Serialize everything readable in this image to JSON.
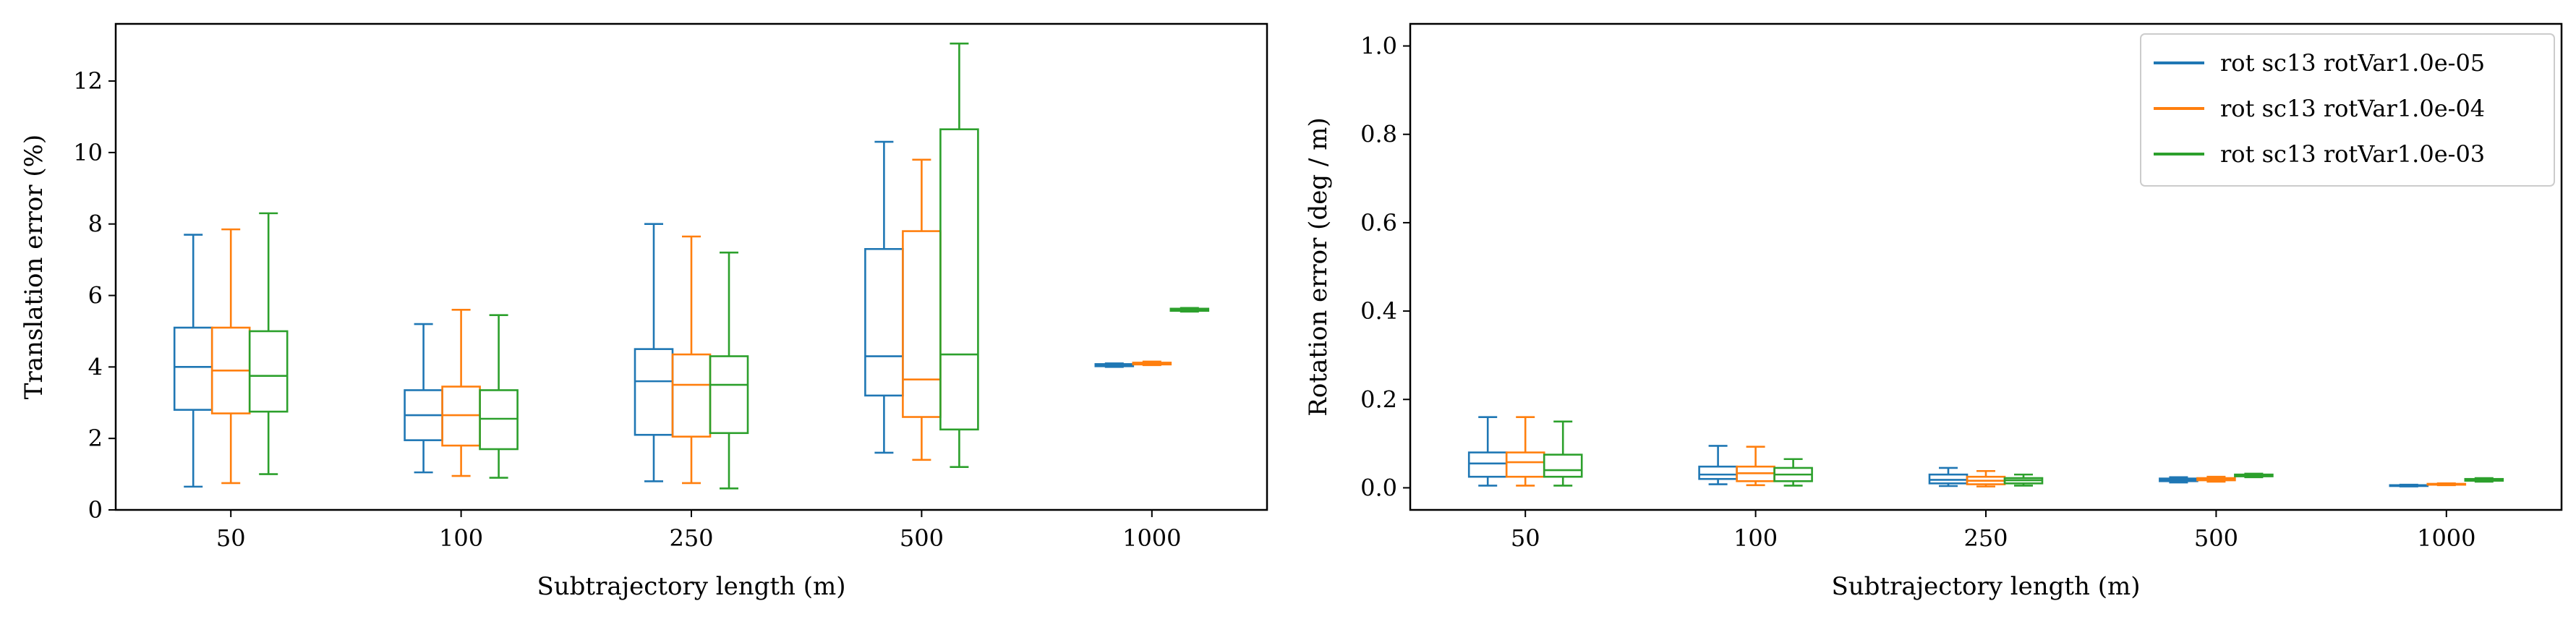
{
  "chart_data": [
    {
      "type": "box",
      "xlabel": "Subtrajectory length (m)",
      "ylabel": "Translation error (%)",
      "ylim": [
        0,
        13.6
      ],
      "yticks": [
        0,
        2,
        4,
        6,
        8,
        10,
        12
      ],
      "categories": [
        "50",
        "100",
        "250",
        "500",
        "1000"
      ],
      "grid": false,
      "series": [
        {
          "color": "#1f77b4",
          "boxes": [
            {
              "whisker_low": 0.65,
              "q1": 2.8,
              "median": 4.0,
              "q3": 5.1,
              "whisker_high": 7.7
            },
            {
              "whisker_low": 1.05,
              "q1": 1.95,
              "median": 2.65,
              "q3": 3.35,
              "whisker_high": 5.2
            },
            {
              "whisker_low": 0.8,
              "q1": 2.1,
              "median": 3.6,
              "q3": 4.5,
              "whisker_high": 8.0
            },
            {
              "whisker_low": 1.6,
              "q1": 3.2,
              "median": 4.3,
              "q3": 7.3,
              "whisker_high": 10.3
            },
            {
              "whisker_low": 4.0,
              "q1": 4.02,
              "median": 4.05,
              "q3": 4.08,
              "whisker_high": 4.1
            }
          ]
        },
        {
          "color": "#ff7f0e",
          "boxes": [
            {
              "whisker_low": 0.75,
              "q1": 2.7,
              "median": 3.9,
              "q3": 5.1,
              "whisker_high": 7.85
            },
            {
              "whisker_low": 0.95,
              "q1": 1.8,
              "median": 2.65,
              "q3": 3.45,
              "whisker_high": 5.6
            },
            {
              "whisker_low": 0.75,
              "q1": 2.05,
              "median": 3.5,
              "q3": 4.35,
              "whisker_high": 7.65
            },
            {
              "whisker_low": 1.4,
              "q1": 2.6,
              "median": 3.65,
              "q3": 7.8,
              "whisker_high": 9.8
            },
            {
              "whisker_low": 4.05,
              "q1": 4.07,
              "median": 4.1,
              "q3": 4.12,
              "whisker_high": 4.15
            }
          ]
        },
        {
          "color": "#2ca02c",
          "boxes": [
            {
              "whisker_low": 1.0,
              "q1": 2.75,
              "median": 3.75,
              "q3": 5.0,
              "whisker_high": 8.3
            },
            {
              "whisker_low": 0.9,
              "q1": 1.7,
              "median": 2.55,
              "q3": 3.35,
              "whisker_high": 5.45
            },
            {
              "whisker_low": 0.6,
              "q1": 2.15,
              "median": 3.5,
              "q3": 4.3,
              "whisker_high": 7.2
            },
            {
              "whisker_low": 1.2,
              "q1": 2.25,
              "median": 4.35,
              "q3": 10.65,
              "whisker_high": 13.05
            },
            {
              "whisker_low": 5.55,
              "q1": 5.57,
              "median": 5.6,
              "q3": 5.63,
              "whisker_high": 5.65
            }
          ]
        }
      ]
    },
    {
      "type": "box",
      "xlabel": "Subtrajectory length (m)",
      "ylabel": "Rotation error (deg / m)",
      "ylim": [
        -0.05,
        1.05
      ],
      "yticks": [
        0.0,
        0.2,
        0.4,
        0.6,
        0.8,
        1.0
      ],
      "ytick_labels": [
        "0.0",
        "0.2",
        "0.4",
        "0.6",
        "0.8",
        "1.0"
      ],
      "categories": [
        "50",
        "100",
        "250",
        "500",
        "1000"
      ],
      "grid": false,
      "legend": {
        "position": "top-right",
        "entries": [
          "rot sc13 rotVar1.0e-05",
          "rot sc13 rotVar1.0e-04",
          "rot sc13 rotVar1.0e-03"
        ]
      },
      "series": [
        {
          "name": "rot sc13 rotVar1.0e-05",
          "color": "#1f77b4",
          "boxes": [
            {
              "whisker_low": 0.005,
              "q1": 0.025,
              "median": 0.055,
              "q3": 0.08,
              "whisker_high": 0.16
            },
            {
              "whisker_low": 0.008,
              "q1": 0.02,
              "median": 0.03,
              "q3": 0.048,
              "whisker_high": 0.095
            },
            {
              "whisker_low": 0.004,
              "q1": 0.01,
              "median": 0.018,
              "q3": 0.03,
              "whisker_high": 0.045
            },
            {
              "whisker_low": 0.012,
              "q1": 0.015,
              "median": 0.018,
              "q3": 0.021,
              "whisker_high": 0.024
            },
            {
              "whisker_low": 0.003,
              "q1": 0.004,
              "median": 0.005,
              "q3": 0.006,
              "whisker_high": 0.007
            }
          ]
        },
        {
          "name": "rot sc13 rotVar1.0e-04",
          "color": "#ff7f0e",
          "boxes": [
            {
              "whisker_low": 0.005,
              "q1": 0.025,
              "median": 0.058,
              "q3": 0.08,
              "whisker_high": 0.16
            },
            {
              "whisker_low": 0.006,
              "q1": 0.015,
              "median": 0.033,
              "q3": 0.048,
              "whisker_high": 0.093
            },
            {
              "whisker_low": 0.003,
              "q1": 0.008,
              "median": 0.016,
              "q3": 0.025,
              "whisker_high": 0.038
            },
            {
              "whisker_low": 0.014,
              "q1": 0.017,
              "median": 0.02,
              "q3": 0.022,
              "whisker_high": 0.025
            },
            {
              "whisker_low": 0.006,
              "q1": 0.007,
              "median": 0.008,
              "q3": 0.009,
              "whisker_high": 0.01
            }
          ]
        },
        {
          "name": "rot sc13 rotVar1.0e-03",
          "color": "#2ca02c",
          "boxes": [
            {
              "whisker_low": 0.005,
              "q1": 0.025,
              "median": 0.04,
              "q3": 0.075,
              "whisker_high": 0.15
            },
            {
              "whisker_low": 0.005,
              "q1": 0.015,
              "median": 0.03,
              "q3": 0.045,
              "whisker_high": 0.065
            },
            {
              "whisker_low": 0.005,
              "q1": 0.01,
              "median": 0.017,
              "q3": 0.022,
              "whisker_high": 0.03
            },
            {
              "whisker_low": 0.024,
              "q1": 0.026,
              "median": 0.028,
              "q3": 0.03,
              "whisker_high": 0.032
            },
            {
              "whisker_low": 0.014,
              "q1": 0.016,
              "median": 0.018,
              "q3": 0.02,
              "whisker_high": 0.022
            }
          ]
        }
      ]
    }
  ]
}
